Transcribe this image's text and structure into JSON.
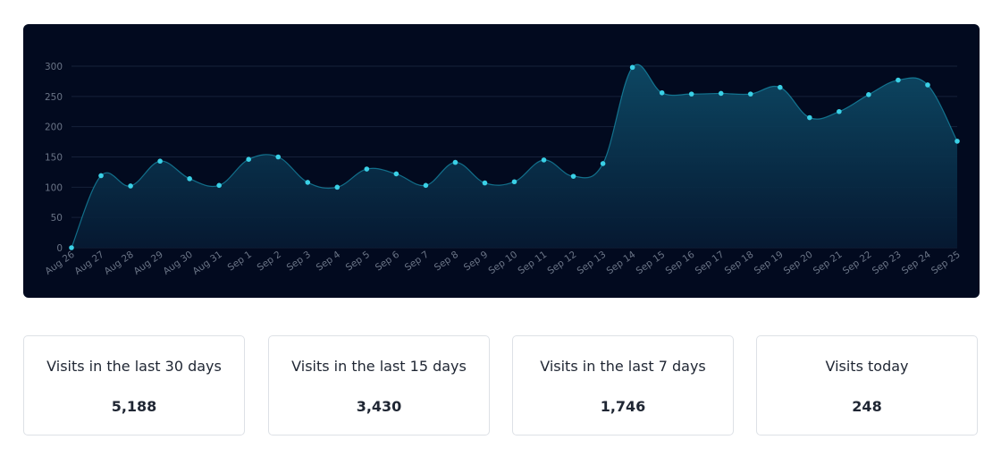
{
  "chart_data": {
    "type": "area",
    "title": "",
    "xlabel": "",
    "ylabel": "",
    "ylim": [
      0,
      300
    ],
    "yticks": [
      0,
      50,
      100,
      150,
      200,
      250,
      300
    ],
    "grid": true,
    "categories": [
      "Aug 26",
      "Aug 27",
      "Aug 28",
      "Aug 29",
      "Aug 30",
      "Aug 31",
      "Sep 1",
      "Sep 2",
      "Sep 3",
      "Sep 4",
      "Sep 5",
      "Sep 6",
      "Sep 7",
      "Sep 8",
      "Sep 9",
      "Sep 10",
      "Sep 11",
      "Sep 12",
      "Sep 13",
      "Sep 14",
      "Sep 15",
      "Sep 16",
      "Sep 17",
      "Sep 18",
      "Sep 19",
      "Sep 20",
      "Sep 21",
      "Sep 22",
      "Sep 23",
      "Sep 24",
      "Sep 25"
    ],
    "series": [
      {
        "values": [
          0,
          119,
          102,
          143,
          114,
          103,
          146,
          150,
          108,
          100,
          130,
          122,
          103,
          141,
          107,
          109,
          145,
          118,
          139,
          298,
          256,
          254,
          255,
          254,
          265,
          215,
          225,
          253,
          277,
          269,
          176
        ]
      }
    ],
    "colors": {
      "line": "#1aa7c4",
      "marker": "#3ad0e6",
      "area_top": "#0d4a66",
      "area_bottom": "#061a33",
      "grid": "#16213a",
      "background": "#020a1f"
    }
  },
  "stats": [
    {
      "label": "Visits in the last 30 days",
      "value": "5,188"
    },
    {
      "label": "Visits in the last 15 days",
      "value": "3,430"
    },
    {
      "label": "Visits in the last 7 days",
      "value": "1,746"
    },
    {
      "label": "Visits today",
      "value": "248"
    }
  ]
}
